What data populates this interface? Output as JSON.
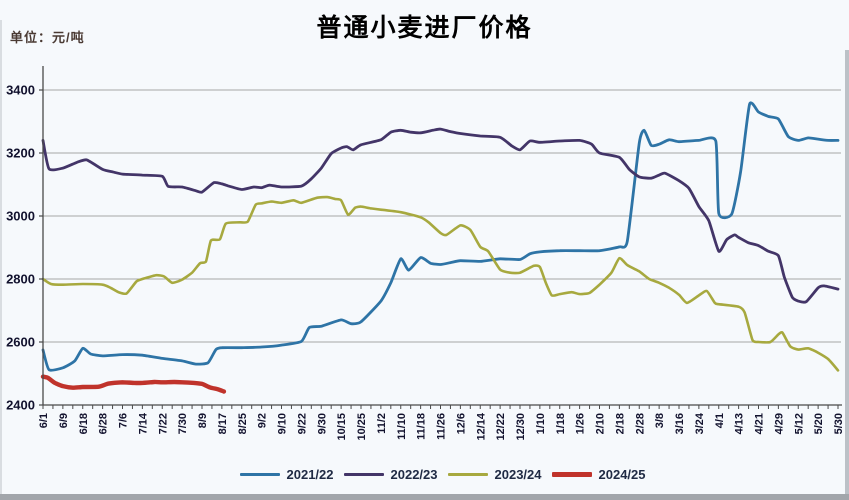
{
  "colors": {
    "background": "#f6f9fc",
    "grid": "#a6a6a6",
    "axis": "#4a4a4a",
    "title_text": "#000000",
    "unit_text": "#4a3a33",
    "tick_label_text": "#12122e",
    "legend_text": "#1f2a44",
    "photo_edge": "#a2a6ab"
  },
  "chart_data": {
    "type": "line",
    "title": "普通小麦进厂价格",
    "unit_label": "单位：元/吨",
    "xlabel": "",
    "ylabel": "",
    "ylim": [
      2400,
      3400
    ],
    "y_ticks": [
      2400,
      2600,
      2800,
      3000,
      3200,
      3400
    ],
    "grid": true,
    "legend_position": "bottom",
    "x_labels": [
      "6/1",
      "6/9",
      "6/18",
      "6/28",
      "7/6",
      "7/14",
      "7/22",
      "7/30",
      "8/9",
      "8/17",
      "8/25",
      "9/2",
      "9/10",
      "9/22",
      "9/30",
      "10/15",
      "10/25",
      "11/2",
      "11/10",
      "11/18",
      "11/26",
      "12/6",
      "12/14",
      "12/22",
      "12/30",
      "1/10",
      "1/18",
      "1/26",
      "2/10",
      "2/18",
      "2/28",
      "3/8",
      "3/16",
      "3/24",
      "4/1",
      "4/13",
      "4/21",
      "4/29",
      "5/12",
      "5/20",
      "5/30"
    ],
    "x_unit": "index into x_labels, fractional positions allowed",
    "series": [
      {
        "name": "2021/22",
        "color": "#2e74a6",
        "line_width": 2.8,
        "points": [
          [
            0,
            2575
          ],
          [
            0.3,
            2512
          ],
          [
            1,
            2518
          ],
          [
            1.6,
            2540
          ],
          [
            2,
            2580
          ],
          [
            2.4,
            2562
          ],
          [
            3,
            2556
          ],
          [
            4,
            2560
          ],
          [
            5,
            2558
          ],
          [
            6,
            2548
          ],
          [
            7,
            2540
          ],
          [
            7.7,
            2530
          ],
          [
            8.3,
            2534
          ],
          [
            8.7,
            2576
          ],
          [
            9,
            2582
          ],
          [
            10,
            2582
          ],
          [
            11,
            2584
          ],
          [
            12,
            2590
          ],
          [
            13,
            2602
          ],
          [
            13.4,
            2646
          ],
          [
            14,
            2650
          ],
          [
            15,
            2670
          ],
          [
            15.5,
            2658
          ],
          [
            16,
            2664
          ],
          [
            17,
            2730
          ],
          [
            17.5,
            2788
          ],
          [
            18,
            2864
          ],
          [
            18.4,
            2828
          ],
          [
            19,
            2868
          ],
          [
            19.5,
            2850
          ],
          [
            20,
            2846
          ],
          [
            20.5,
            2852
          ],
          [
            21,
            2858
          ],
          [
            22,
            2856
          ],
          [
            23,
            2864
          ],
          [
            24,
            2862
          ],
          [
            24.5,
            2880
          ],
          [
            25,
            2886
          ],
          [
            26,
            2890
          ],
          [
            27,
            2890
          ],
          [
            28,
            2890
          ],
          [
            29,
            2902
          ],
          [
            29.4,
            2920
          ],
          [
            30,
            3232
          ],
          [
            30.25,
            3272
          ],
          [
            30.6,
            3224
          ],
          [
            31,
            3228
          ],
          [
            31.5,
            3242
          ],
          [
            32,
            3236
          ],
          [
            33,
            3240
          ],
          [
            33.85,
            3238
          ],
          [
            34,
            3008
          ],
          [
            34.65,
            3006
          ],
          [
            35.1,
            3140
          ],
          [
            35.55,
            3355
          ],
          [
            36,
            3330
          ],
          [
            36.5,
            3316
          ],
          [
            37,
            3308
          ],
          [
            37.5,
            3252
          ],
          [
            38,
            3240
          ],
          [
            38.5,
            3248
          ],
          [
            39,
            3244
          ],
          [
            39.5,
            3240
          ],
          [
            40,
            3240
          ]
        ]
      },
      {
        "name": "2022/23",
        "color": "#433568",
        "line_width": 2.8,
        "points": [
          [
            0,
            3240
          ],
          [
            0.3,
            3150
          ],
          [
            1,
            3152
          ],
          [
            1.7,
            3170
          ],
          [
            2.2,
            3178
          ],
          [
            3,
            3148
          ],
          [
            3.5,
            3140
          ],
          [
            4,
            3133
          ],
          [
            5,
            3130
          ],
          [
            6,
            3126
          ],
          [
            6.3,
            3094
          ],
          [
            7,
            3092
          ],
          [
            7.7,
            3080
          ],
          [
            8,
            3076
          ],
          [
            8.6,
            3106
          ],
          [
            9,
            3102
          ],
          [
            9.3,
            3096
          ],
          [
            10,
            3084
          ],
          [
            10.6,
            3092
          ],
          [
            11,
            3090
          ],
          [
            11.4,
            3098
          ],
          [
            12,
            3092
          ],
          [
            13,
            3095
          ],
          [
            13.5,
            3118
          ],
          [
            14,
            3152
          ],
          [
            14.5,
            3198
          ],
          [
            15,
            3216
          ],
          [
            15.3,
            3220
          ],
          [
            15.6,
            3210
          ],
          [
            16,
            3226
          ],
          [
            17,
            3242
          ],
          [
            17.5,
            3266
          ],
          [
            18,
            3272
          ],
          [
            18.5,
            3266
          ],
          [
            19,
            3264
          ],
          [
            19.6,
            3272
          ],
          [
            20,
            3276
          ],
          [
            20.5,
            3268
          ],
          [
            21,
            3262
          ],
          [
            22,
            3254
          ],
          [
            23,
            3250
          ],
          [
            23.6,
            3222
          ],
          [
            24,
            3210
          ],
          [
            24.5,
            3238
          ],
          [
            25,
            3234
          ],
          [
            26,
            3238
          ],
          [
            27,
            3240
          ],
          [
            27.6,
            3228
          ],
          [
            28,
            3200
          ],
          [
            29,
            3186
          ],
          [
            29.5,
            3148
          ],
          [
            30,
            3124
          ],
          [
            30.6,
            3120
          ],
          [
            31,
            3130
          ],
          [
            31.3,
            3136
          ],
          [
            32,
            3112
          ],
          [
            32.5,
            3088
          ],
          [
            33,
            3030
          ],
          [
            33.5,
            2985
          ],
          [
            34,
            2888
          ],
          [
            34.4,
            2925
          ],
          [
            34.8,
            2940
          ],
          [
            35,
            2932
          ],
          [
            35.5,
            2915
          ],
          [
            36,
            2906
          ],
          [
            36.5,
            2888
          ],
          [
            37,
            2874
          ],
          [
            37.3,
            2806
          ],
          [
            37.7,
            2742
          ],
          [
            38,
            2730
          ],
          [
            38.4,
            2728
          ],
          [
            39,
            2772
          ],
          [
            39.3,
            2778
          ],
          [
            40,
            2768
          ]
        ]
      },
      {
        "name": "2023/24",
        "color": "#a7a93f",
        "line_width": 2.6,
        "points": [
          [
            0,
            2800
          ],
          [
            0.4,
            2784
          ],
          [
            1,
            2782
          ],
          [
            2,
            2784
          ],
          [
            3,
            2782
          ],
          [
            3.4,
            2772
          ],
          [
            3.8,
            2758
          ],
          [
            4.2,
            2754
          ],
          [
            4.7,
            2792
          ],
          [
            5,
            2800
          ],
          [
            5.7,
            2812
          ],
          [
            6.1,
            2808
          ],
          [
            6.5,
            2788
          ],
          [
            7,
            2798
          ],
          [
            7.5,
            2820
          ],
          [
            7.9,
            2850
          ],
          [
            8.2,
            2856
          ],
          [
            8.45,
            2922
          ],
          [
            8.9,
            2926
          ],
          [
            9.2,
            2976
          ],
          [
            9.9,
            2980
          ],
          [
            10.3,
            2982
          ],
          [
            10.7,
            3036
          ],
          [
            11,
            3040
          ],
          [
            11.5,
            3046
          ],
          [
            12,
            3042
          ],
          [
            12.6,
            3050
          ],
          [
            13,
            3042
          ],
          [
            13.8,
            3058
          ],
          [
            14.3,
            3060
          ],
          [
            14.7,
            3054
          ],
          [
            15,
            3050
          ],
          [
            15.35,
            3004
          ],
          [
            15.7,
            3026
          ],
          [
            16,
            3030
          ],
          [
            16.5,
            3024
          ],
          [
            17,
            3020
          ],
          [
            18,
            3012
          ],
          [
            19,
            2996
          ],
          [
            19.4,
            2980
          ],
          [
            20,
            2946
          ],
          [
            20.3,
            2940
          ],
          [
            21,
            2970
          ],
          [
            21.5,
            2956
          ],
          [
            22,
            2902
          ],
          [
            22.4,
            2888
          ],
          [
            23,
            2830
          ],
          [
            23.5,
            2820
          ],
          [
            24,
            2820
          ],
          [
            24.7,
            2842
          ],
          [
            25,
            2838
          ],
          [
            25.3,
            2788
          ],
          [
            25.6,
            2748
          ],
          [
            26,
            2752
          ],
          [
            26.6,
            2758
          ],
          [
            27,
            2752
          ],
          [
            27.5,
            2756
          ],
          [
            28,
            2782
          ],
          [
            28.6,
            2820
          ],
          [
            29,
            2866
          ],
          [
            29.4,
            2844
          ],
          [
            30,
            2824
          ],
          [
            30.5,
            2800
          ],
          [
            31,
            2788
          ],
          [
            31.5,
            2772
          ],
          [
            32,
            2750
          ],
          [
            32.4,
            2724
          ],
          [
            33,
            2748
          ],
          [
            33.4,
            2762
          ],
          [
            33.8,
            2724
          ],
          [
            34,
            2720
          ],
          [
            35,
            2712
          ],
          [
            35.3,
            2694
          ],
          [
            35.7,
            2606
          ],
          [
            36,
            2600
          ],
          [
            36.6,
            2600
          ],
          [
            37,
            2624
          ],
          [
            37.2,
            2630
          ],
          [
            37.6,
            2586
          ],
          [
            38,
            2576
          ],
          [
            38.5,
            2580
          ],
          [
            39,
            2566
          ],
          [
            39.5,
            2546
          ],
          [
            40,
            2510
          ]
        ]
      },
      {
        "name": "2024/25",
        "color": "#c0332b",
        "line_width": 4.4,
        "points": [
          [
            0,
            2490
          ],
          [
            0.25,
            2486
          ],
          [
            0.6,
            2470
          ],
          [
            1,
            2460
          ],
          [
            1.5,
            2455
          ],
          [
            2,
            2457
          ],
          [
            2.8,
            2458
          ],
          [
            3.3,
            2468
          ],
          [
            4,
            2472
          ],
          [
            4.6,
            2470
          ],
          [
            5,
            2470
          ],
          [
            5.6,
            2473
          ],
          [
            6,
            2472
          ],
          [
            6.6,
            2473
          ],
          [
            7,
            2472
          ],
          [
            7.6,
            2470
          ],
          [
            8,
            2467
          ],
          [
            8.4,
            2456
          ],
          [
            8.8,
            2450
          ],
          [
            9.1,
            2443
          ]
        ]
      }
    ]
  }
}
